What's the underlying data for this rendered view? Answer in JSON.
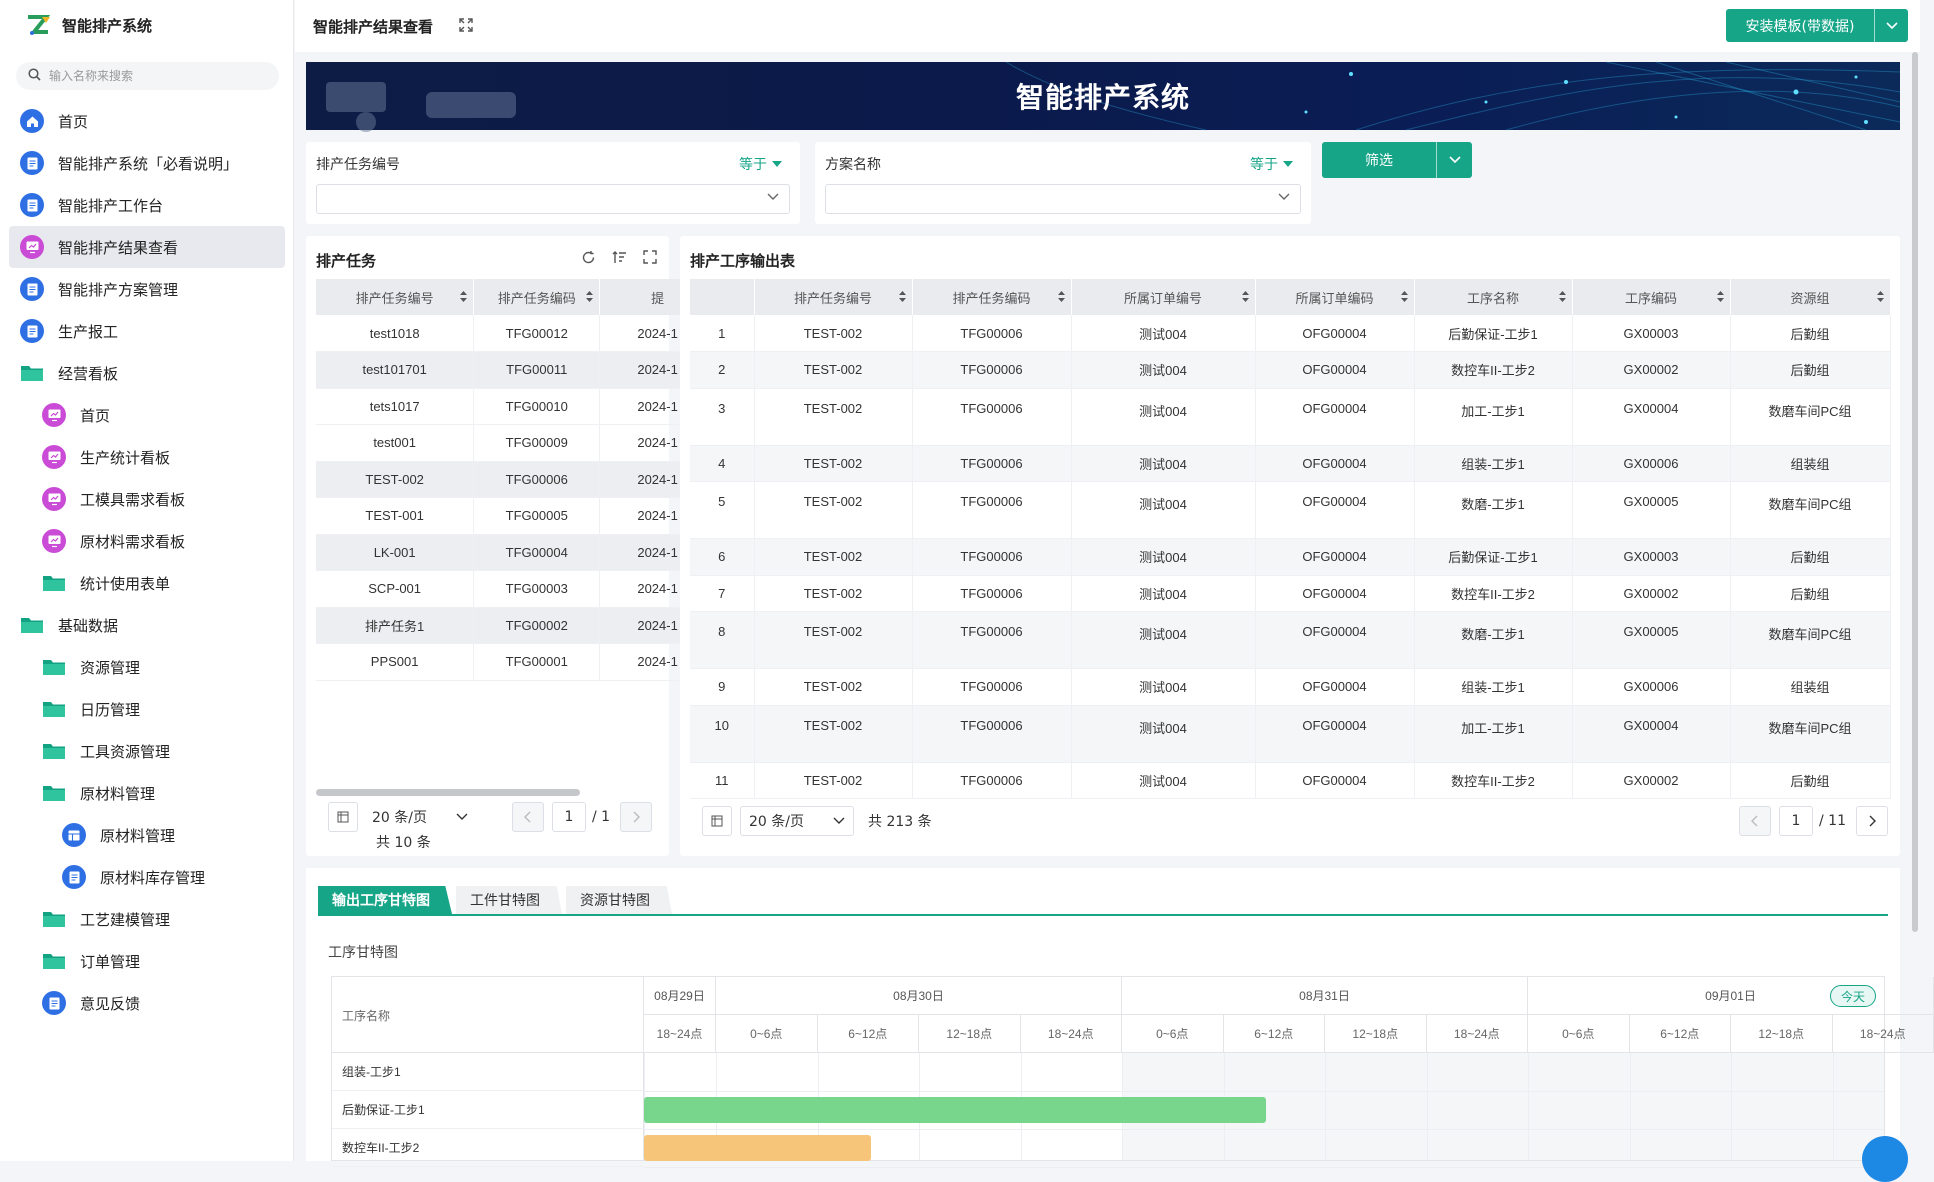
{
  "brand": {
    "title": "智能排产系统"
  },
  "search": {
    "placeholder": "输入名称来搜索"
  },
  "sidebar": {
    "items": [
      {
        "label": "首页"
      },
      {
        "label": "智能排产系统「必看说明」"
      },
      {
        "label": "智能排产工作台"
      },
      {
        "label": "智能排产结果查看"
      },
      {
        "label": "智能排产方案管理"
      },
      {
        "label": "生产报工"
      },
      {
        "label": "经营看板"
      },
      {
        "label": "首页"
      },
      {
        "label": "生产统计看板"
      },
      {
        "label": "工模具需求看板"
      },
      {
        "label": "原材料需求看板"
      },
      {
        "label": "统计使用表单"
      },
      {
        "label": "基础数据"
      },
      {
        "label": "资源管理"
      },
      {
        "label": "日历管理"
      },
      {
        "label": "工具资源管理"
      },
      {
        "label": "原材料管理"
      },
      {
        "label": "原材料管理"
      },
      {
        "label": "原材料库存管理"
      },
      {
        "label": "工艺建模管理"
      },
      {
        "label": "订单管理"
      },
      {
        "label": "意见反馈"
      }
    ]
  },
  "header": {
    "title": "智能排产结果查看",
    "install_button": "安装模板(带数据)"
  },
  "banner": {
    "title": "智能排产系统"
  },
  "filters": {
    "task_no_label": "排产任务编号",
    "plan_name_label": "方案名称",
    "operator": "等于",
    "filter_button": "筛选"
  },
  "task_panel": {
    "title": "排产任务",
    "columns": [
      "排产任务编号",
      "排产任务编码",
      "提"
    ],
    "rows": [
      [
        "test1018",
        "TFG00012",
        "2024-1"
      ],
      [
        "test101701",
        "TFG00011",
        "2024-1"
      ],
      [
        "tets1017",
        "TFG00010",
        "2024-1"
      ],
      [
        "test001",
        "TFG00009",
        "2024-1"
      ],
      [
        "TEST-002",
        "TFG00006",
        "2024-1"
      ],
      [
        "TEST-001",
        "TFG00005",
        "2024-1"
      ],
      [
        "LK-001",
        "TFG00004",
        "2024-1"
      ],
      [
        "SCP-001",
        "TFG00003",
        "2024-1"
      ],
      [
        "排产任务1",
        "TFG00002",
        "2024-1"
      ],
      [
        "PPS001",
        "TFG00001",
        "2024-1"
      ]
    ],
    "page_size": "20 条/页",
    "total": "共 10 条",
    "page": "1",
    "pages": "/ 1"
  },
  "output_panel": {
    "title": "排产工序输出表",
    "columns": [
      "排产任务编号",
      "排产任务编码",
      "所属订单编号",
      "所属订单编码",
      "工序名称",
      "工序编码",
      "资源组"
    ],
    "rows": [
      [
        "1",
        "TEST-002",
        "TFG00006",
        "测试004",
        "OFG00004",
        "后勤保证-工步1",
        "GX00003",
        "后勤组"
      ],
      [
        "2",
        "TEST-002",
        "TFG00006",
        "测试004",
        "OFG00004",
        "数控车II-工步2",
        "GX00002",
        "后勤组"
      ],
      [
        "3",
        "TEST-002",
        "TFG00006",
        "测试004",
        "OFG00004",
        "加工-工步1",
        "GX00004",
        "数磨车间PC组"
      ],
      [
        "4",
        "TEST-002",
        "TFG00006",
        "测试004",
        "OFG00004",
        "组装-工步1",
        "GX00006",
        "组装组"
      ],
      [
        "5",
        "TEST-002",
        "TFG00006",
        "测试004",
        "OFG00004",
        "数磨-工步1",
        "GX00005",
        "数磨车间PC组"
      ],
      [
        "6",
        "TEST-002",
        "TFG00006",
        "测试004",
        "OFG00004",
        "后勤保证-工步1",
        "GX00003",
        "后勤组"
      ],
      [
        "7",
        "TEST-002",
        "TFG00006",
        "测试004",
        "OFG00004",
        "数控车II-工步2",
        "GX00002",
        "后勤组"
      ],
      [
        "8",
        "TEST-002",
        "TFG00006",
        "测试004",
        "OFG00004",
        "数磨-工步1",
        "GX00005",
        "数磨车间PC组"
      ],
      [
        "9",
        "TEST-002",
        "TFG00006",
        "测试004",
        "OFG00004",
        "组装-工步1",
        "GX00006",
        "组装组"
      ],
      [
        "10",
        "TEST-002",
        "TFG00006",
        "测试004",
        "OFG00004",
        "加工-工步1",
        "GX00004",
        "数磨车间PC组"
      ],
      [
        "11",
        "TEST-002",
        "TFG00006",
        "测试004",
        "OFG00004",
        "数控车II-工步2",
        "GX00002",
        "后勤组"
      ]
    ],
    "page_size": "20 条/页",
    "total": "共 213 条",
    "page": "1",
    "pages": "/ 11"
  },
  "gantt": {
    "tabs": [
      "输出工序甘特图",
      "工件甘特图",
      "资源甘特图"
    ],
    "title": "工序甘特图",
    "name_header": "工序名称",
    "today": "今天",
    "days": [
      "08月29日",
      "08月30日",
      "08月31日",
      "09月01日"
    ],
    "slots": [
      "18~24点",
      "0~6点",
      "6~12点",
      "12~18点",
      "18~24点",
      "0~6点",
      "6~12点",
      "12~18点",
      "18~24点",
      "0~6点",
      "6~12点",
      "12~18点",
      "18~24点"
    ],
    "rows": [
      "组装-工步1",
      "后勤保证-工步1",
      "数控车II-工步2"
    ],
    "colors": {
      "green_bar": "#77d68c",
      "orange_bar": "#f7c57a"
    }
  },
  "colors": {
    "accent": "#17a588",
    "banner": "#0b1a4a"
  }
}
